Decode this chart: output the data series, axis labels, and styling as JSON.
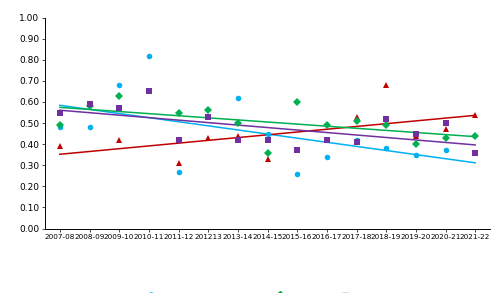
{
  "seasons": [
    "2007-08",
    "2008-09",
    "2009-10",
    "2010-11",
    "2011-12",
    "201213",
    "2013-14",
    "2014-15",
    "2015-16",
    "2016-17",
    "2017-18",
    "2018-19",
    "2019-20",
    "2020-21",
    "2021-22"
  ],
  "DM": [
    0.48,
    0.48,
    0.68,
    0.82,
    0.27,
    null,
    0.62,
    0.45,
    0.26,
    0.34,
    0.42,
    0.38,
    0.35,
    0.37,
    null
  ],
  "FM": [
    0.39,
    null,
    0.42,
    null,
    0.31,
    0.43,
    0.44,
    0.33,
    null,
    null,
    0.53,
    0.68,
    0.44,
    0.47,
    0.54
  ],
  "GM": [
    0.49,
    0.58,
    0.63,
    null,
    0.55,
    0.56,
    0.5,
    0.36,
    0.6,
    0.49,
    0.51,
    0.49,
    0.4,
    0.43,
    0.44
  ],
  "SM": [
    0.55,
    0.59,
    0.57,
    0.65,
    0.42,
    0.53,
    0.42,
    0.42,
    0.37,
    0.42,
    0.41,
    0.52,
    0.45,
    0.5,
    0.36
  ],
  "DM_color": "#00B0F0",
  "FM_color": "#C00000",
  "GM_color": "#00B050",
  "SM_color": "#7030A0",
  "linear_DM_color": "#00B0F0",
  "linear_FM_color": "#C00000",
  "linear_GM_color": "#00B050",
  "linear_SM_color": "#7030A0",
  "ylim": [
    0.0,
    1.0
  ],
  "yticks": [
    0.0,
    0.1,
    0.2,
    0.3,
    0.4,
    0.5,
    0.6,
    0.7,
    0.8,
    0.9,
    1.0
  ],
  "ytick_labels": [
    "0.00",
    "0.10",
    "0.20",
    "0.30",
    "0.40",
    "0.50",
    "0.60",
    "0.70",
    "0.80",
    "0.90",
    "1.00"
  ],
  "background_color": "#FFFFFF"
}
